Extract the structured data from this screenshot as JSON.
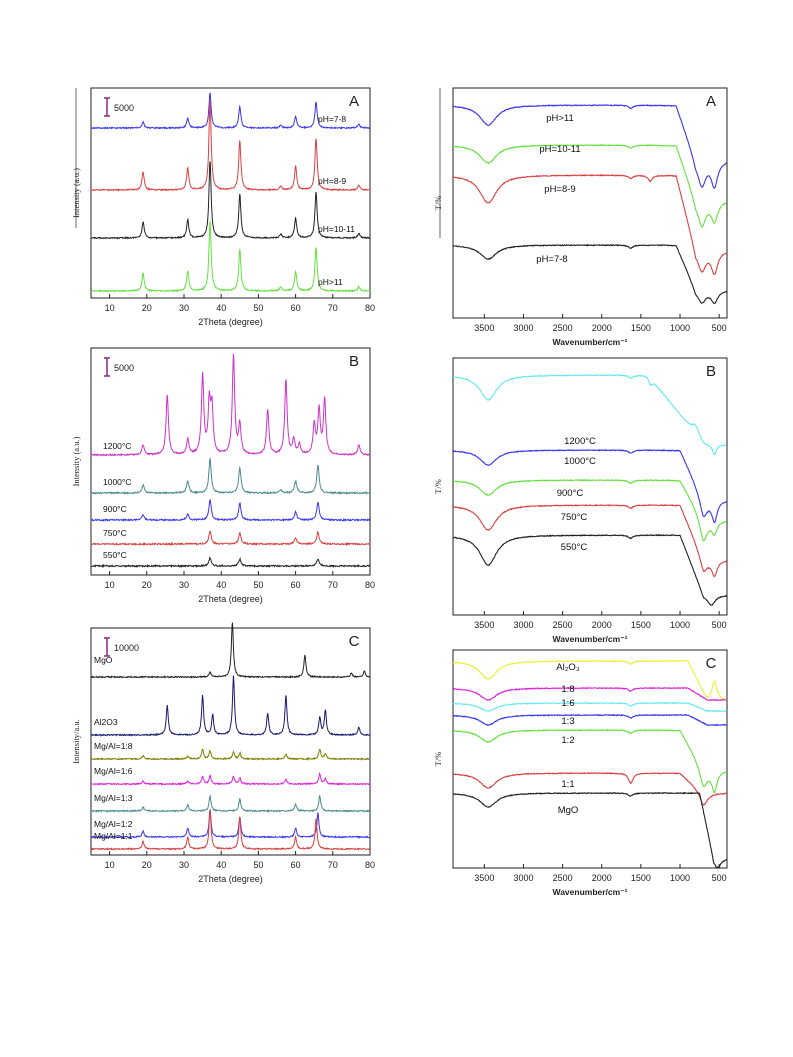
{
  "chart_data": [
    {
      "type": "line",
      "panel": "A",
      "xlabel": "2Theta (degree)",
      "ylabel": "Intensity (a.u.)",
      "xlim": [
        5,
        80
      ],
      "xticks": [
        10,
        20,
        30,
        40,
        50,
        60,
        70,
        80
      ],
      "scale_bar": "5000",
      "peaks": [
        19,
        31,
        37,
        45,
        56,
        60,
        65.5,
        77
      ],
      "series": [
        {
          "name": "pH=7-8",
          "color": "#3a36ee",
          "heights": [
            6,
            10,
            35,
            22,
            3,
            12,
            26,
            4
          ]
        },
        {
          "name": "pH=8-9",
          "color": "#d94040",
          "heights": [
            18,
            22,
            90,
            50,
            4,
            24,
            52,
            5
          ]
        },
        {
          "name": "pH=10-11",
          "color": "#222222",
          "heights": [
            16,
            18,
            78,
            44,
            4,
            20,
            46,
            5
          ]
        },
        {
          "name": "pH>11",
          "color": "#66e040",
          "heights": [
            18,
            20,
            70,
            42,
            4,
            20,
            44,
            4
          ]
        }
      ]
    },
    {
      "type": "line",
      "panel": "A",
      "xlabel": "Wavenumber/cm⁻¹",
      "ylabel": "T/%",
      "xlim": [
        3900,
        400
      ],
      "xticks": [
        3500,
        3000,
        2500,
        2000,
        1500,
        1000,
        500
      ],
      "series": [
        {
          "name": "pH>11",
          "color": "#3a36ee"
        },
        {
          "name": "pH=10-11",
          "color": "#66e040"
        },
        {
          "name": "pH=8-9",
          "color": "#d94040"
        },
        {
          "name": "pH=7-8",
          "color": "#222222"
        }
      ]
    },
    {
      "type": "line",
      "panel": "B",
      "xlabel": "2Theta (degree)",
      "ylabel": "Intensity (a.u.)",
      "xlim": [
        5,
        80
      ],
      "xticks": [
        10,
        20,
        30,
        40,
        50,
        60,
        70,
        80
      ],
      "scale_bar": "5000",
      "series": [
        {
          "name": "1200°C",
          "color": "#cc33cc",
          "peaks": [
            19,
            25.5,
            31,
            35,
            36.8,
            37.5,
            43.3,
            45,
            52.5,
            57.4,
            59.5,
            61,
            65,
            66.3,
            67.8,
            77
          ],
          "heights": [
            10,
            60,
            15,
            80,
            50,
            45,
            100,
            30,
            45,
            75,
            15,
            10,
            30,
            45,
            55,
            10
          ]
        },
        {
          "name": "1000°C",
          "color": "#4d8a8a",
          "peaks": [
            19,
            31,
            37,
            45,
            56,
            60,
            66
          ],
          "heights": [
            8,
            12,
            34,
            26,
            3,
            12,
            28
          ]
        },
        {
          "name": "900°C",
          "color": "#3a36ee",
          "peaks": [
            19,
            31,
            37,
            45,
            60,
            66
          ],
          "heights": [
            5,
            6,
            20,
            17,
            8,
            18
          ]
        },
        {
          "name": "750°C",
          "color": "#d94040",
          "peaks": [
            37,
            45,
            60,
            66
          ],
          "heights": [
            13,
            11,
            6,
            12
          ]
        },
        {
          "name": "550°C",
          "color": "#222222",
          "peaks": [
            37,
            45,
            66
          ],
          "heights": [
            8,
            7,
            7
          ]
        }
      ]
    },
    {
      "type": "line",
      "panel": "B",
      "xlabel": "Wavenumber/cm⁻¹",
      "ylabel": "T/%",
      "xlim": [
        3900,
        400
      ],
      "xticks": [
        3500,
        3000,
        2500,
        2000,
        1500,
        1000,
        500
      ],
      "series": [
        {
          "name": "1200°C",
          "color": "#66e8f0"
        },
        {
          "name": "1000°C",
          "color": "#3a36ee"
        },
        {
          "name": "900°C",
          "color": "#66e040"
        },
        {
          "name": "750°C",
          "color": "#d94040"
        },
        {
          "name": "550°C",
          "color": "#222222"
        }
      ]
    },
    {
      "type": "line",
      "panel": "C",
      "xlabel": "2Theta (degree)",
      "ylabel": "Intensity/a.u.",
      "xlim": [
        5,
        80
      ],
      "xticks": [
        10,
        20,
        30,
        40,
        50,
        60,
        70,
        80
      ],
      "scale_bar": "10000",
      "series": [
        {
          "name": "MgO",
          "color": "#222222",
          "peaks": [
            37,
            43,
            62.5,
            75,
            78.5
          ],
          "heights": [
            5,
            55,
            22,
            4,
            6
          ]
        },
        {
          "name": "Al2O3",
          "color": "#1a1a70",
          "peaks": [
            25.5,
            35,
            37.7,
            43.3,
            52.5,
            57.4,
            66.5,
            68,
            77
          ],
          "heights": [
            30,
            40,
            20,
            60,
            22,
            40,
            18,
            25,
            8
          ]
        },
        {
          "name": "Mg/Al=1:8",
          "color": "#808000",
          "peaks": [
            19,
            31,
            35,
            37,
            43.3,
            45,
            57.4,
            66.5,
            68
          ],
          "heights": [
            3,
            3,
            10,
            8,
            7,
            6,
            5,
            10,
            5
          ]
        },
        {
          "name": "Mg/Al=1:6",
          "color": "#dd22dd",
          "peaks": [
            19,
            31,
            35,
            37,
            43.3,
            45,
            57.4,
            66.5,
            68
          ],
          "heights": [
            3,
            3,
            8,
            8,
            8,
            6,
            5,
            10,
            5
          ]
        },
        {
          "name": "Mg/Al=1:3",
          "color": "#4d8a8a",
          "peaks": [
            19,
            31,
            37,
            45,
            60,
            66.5
          ],
          "heights": [
            4,
            6,
            15,
            12,
            7,
            15
          ]
        },
        {
          "name": "Mg/Al=1:2",
          "color": "#3a36ee",
          "peaks": [
            19,
            31,
            37,
            45,
            60,
            66
          ],
          "heights": [
            6,
            9,
            27,
            20,
            9,
            24
          ]
        },
        {
          "name": "Mg/Al=1:1",
          "color": "#d94040",
          "peaks": [
            19,
            31,
            37,
            45,
            60,
            65.5
          ],
          "heights": [
            8,
            12,
            40,
            32,
            12,
            30
          ]
        }
      ]
    },
    {
      "type": "line",
      "panel": "C",
      "xlabel": "Wavenumber/cm⁻¹",
      "ylabel": "T/%",
      "xlim": [
        3900,
        400
      ],
      "xticks": [
        3500,
        3000,
        2500,
        2000,
        1500,
        1000,
        500
      ],
      "series": [
        {
          "name": "Al₂O₃",
          "color": "#eeee33"
        },
        {
          "name": "1:8",
          "color": "#dd22dd"
        },
        {
          "name": "1:6",
          "color": "#66e8f0"
        },
        {
          "name": "1:3",
          "color": "#3a36ee"
        },
        {
          "name": "1:2",
          "color": "#66e040"
        },
        {
          "name": "1:1",
          "color": "#d94040"
        },
        {
          "name": "MgO",
          "color": "#222222"
        }
      ]
    }
  ]
}
